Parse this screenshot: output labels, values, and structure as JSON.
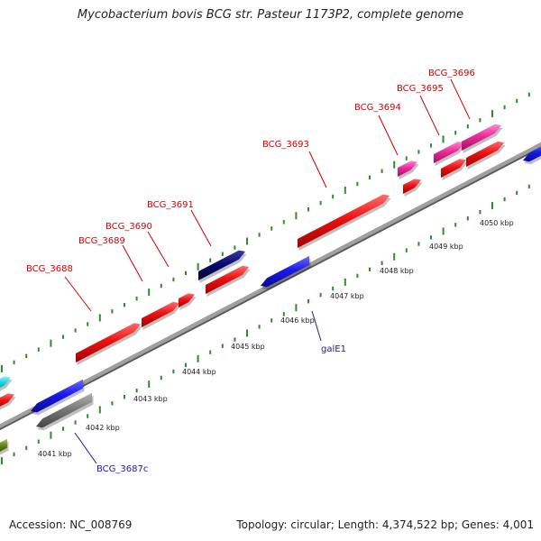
{
  "header": {
    "title": "Mycobacterium bovis BCG str. Pasteur 1173P2, complete genome"
  },
  "footer": {
    "accession": "Accession: NC_008769",
    "summary": "Topology: circular; Length: 4,374,522 bp; Genes: 4,001"
  },
  "colors": {
    "backbone": "#a0a0a0",
    "tick": "#2e8b2e",
    "forward_gene": "#ee1111",
    "reverse_gene": "#1a1aee",
    "navy_gene": "#0a0a6e",
    "pink_gene": "#ee2a9a",
    "gray_gene": "#7a7a7a",
    "cyan_gene": "#16d6e6",
    "olive_gene": "#6a8a1a",
    "label_forward": "#d40000",
    "label_reverse": "#1a1aa6"
  },
  "scale": {
    "unit": "kbp",
    "ticks": [
      {
        "value": 4041,
        "label": "4041 kbp"
      },
      {
        "value": 4042,
        "label": "4042 kbp"
      },
      {
        "value": 4043,
        "label": "4043 kbp"
      },
      {
        "value": 4044,
        "label": "4044 kbp"
      },
      {
        "value": 4045,
        "label": "4045 kbp"
      },
      {
        "value": 4046,
        "label": "4046 kbp"
      },
      {
        "value": 4047,
        "label": "4047 kbp"
      },
      {
        "value": 4048,
        "label": "4048 kbp"
      },
      {
        "value": 4049,
        "label": "4049 kbp"
      },
      {
        "value": 4050,
        "label": "4050 kbp"
      }
    ]
  },
  "genes": {
    "forward": [
      {
        "label": "BCG_3688"
      },
      {
        "label": "BCG_3689"
      },
      {
        "label": "BCG_3690"
      },
      {
        "label": "BCG_3691"
      },
      {
        "label": "BCG_3693"
      },
      {
        "label": "BCG_3694"
      },
      {
        "label": "BCG_3695"
      },
      {
        "label": "BCG_3696"
      }
    ],
    "reverse": [
      {
        "label": "BCG_3687c"
      },
      {
        "label": "galE1"
      }
    ]
  }
}
